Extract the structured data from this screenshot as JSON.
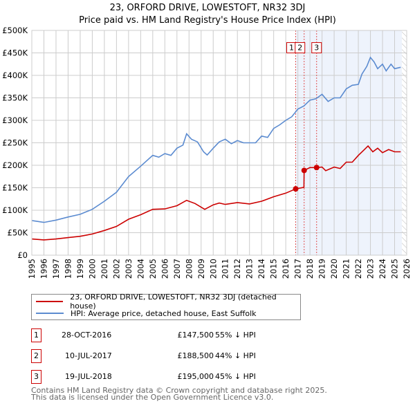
{
  "chart_data": {
    "type": "line",
    "title": "23, ORFORD DRIVE, LOWESTOFT, NR32 3DJ",
    "subtitle": "Price paid vs. HM Land Registry's House Price Index (HPI)",
    "xlim": [
      1995,
      2026
    ],
    "ylim": [
      0,
      500000
    ],
    "y_ticks": [
      0,
      50000,
      100000,
      150000,
      200000,
      250000,
      300000,
      350000,
      400000,
      450000,
      500000
    ],
    "y_tick_labels": [
      "£0",
      "£50K",
      "£100K",
      "£150K",
      "£200K",
      "£250K",
      "£300K",
      "£350K",
      "£400K",
      "£450K",
      "£500K"
    ],
    "x_ticks": [
      1995,
      1996,
      1997,
      1998,
      1999,
      2000,
      2001,
      2002,
      2003,
      2004,
      2005,
      2006,
      2007,
      2008,
      2009,
      2010,
      2011,
      2012,
      2013,
      2014,
      2015,
      2016,
      2017,
      2018,
      2019,
      2020,
      2021,
      2022,
      2023,
      2024,
      2025,
      2026
    ],
    "grid": true,
    "shaded_region": [
      2016.82,
      2025.6
    ],
    "forecast_hatch_from": 2025.6,
    "series": [
      {
        "name": "23, ORFORD DRIVE, LOWESTOFT, NR32 3DJ (detached house)",
        "color": "#cc0000",
        "x": [
          1995,
          1996,
          1997,
          1998,
          1999,
          2000,
          2001,
          2002,
          2003,
          2004,
          2005,
          2006,
          2007,
          2007.8,
          2008.5,
          2009.3,
          2010,
          2010.5,
          2011,
          2012,
          2013,
          2014,
          2015,
          2016,
          2016.82,
          2017.5,
          2017.52,
          2018,
          2018.55,
          2019,
          2019.3,
          2020,
          2020.5,
          2021,
          2021.5,
          2022,
          2022.5,
          2022.8,
          2023.2,
          2023.6,
          2024,
          2024.5,
          2025,
          2025.5
        ],
        "y": [
          36000,
          34000,
          36000,
          39000,
          42000,
          47000,
          55000,
          64000,
          80000,
          90000,
          102000,
          103000,
          110000,
          122000,
          115000,
          102000,
          112000,
          116000,
          113000,
          117000,
          114000,
          120000,
          130000,
          138000,
          147500,
          151000,
          188500,
          195000,
          195000,
          196000,
          188000,
          196000,
          193000,
          207000,
          207000,
          222000,
          235000,
          243000,
          230000,
          238000,
          228000,
          235000,
          230000,
          230000
        ]
      },
      {
        "name": "HPI: Average price, detached house, East Suffolk",
        "color": "#5b8bd0",
        "x": [
          1995,
          1996,
          1997,
          1998,
          1999,
          2000,
          2001,
          2002,
          2003,
          2004,
          2005,
          2005.5,
          2006,
          2006.5,
          2007,
          2007.5,
          2007.8,
          2008.2,
          2008.7,
          2009.2,
          2009.5,
          2010,
          2010.5,
          2011,
          2011.5,
          2012,
          2012.5,
          2013,
          2013.5,
          2014,
          2014.5,
          2015,
          2015.5,
          2016,
          2016.5,
          2017,
          2017.5,
          2018,
          2018.5,
          2019,
          2019.5,
          2020,
          2020.5,
          2021,
          2021.5,
          2022,
          2022.3,
          2022.7,
          2023,
          2023.3,
          2023.6,
          2024,
          2024.3,
          2024.7,
          2025,
          2025.5
        ],
        "y": [
          77000,
          73000,
          78000,
          85000,
          91000,
          102000,
          120000,
          140000,
          175000,
          198000,
          222000,
          218000,
          226000,
          222000,
          238000,
          245000,
          270000,
          258000,
          252000,
          230000,
          223000,
          238000,
          252000,
          258000,
          248000,
          255000,
          250000,
          250000,
          250000,
          265000,
          262000,
          282000,
          290000,
          300000,
          308000,
          325000,
          332000,
          345000,
          348000,
          358000,
          342000,
          350000,
          350000,
          370000,
          378000,
          380000,
          403000,
          420000,
          440000,
          430000,
          415000,
          425000,
          410000,
          425000,
          415000,
          418000
        ]
      }
    ],
    "sales": [
      {
        "num": "1",
        "x": 2016.82,
        "y": 147500
      },
      {
        "num": "2",
        "x": 2017.52,
        "y": 188500
      },
      {
        "num": "3",
        "x": 2018.55,
        "y": 195000
      }
    ]
  },
  "legend": {
    "property": "23, ORFORD DRIVE, LOWESTOFT, NR32 3DJ (detached house)",
    "hpi": "HPI: Average price, detached house, East Suffolk"
  },
  "sales_table": [
    {
      "num": "1",
      "date": "28-OCT-2016",
      "price": "£147,500",
      "hpi": "55% ↓ HPI"
    },
    {
      "num": "2",
      "date": "10-JUL-2017",
      "price": "£188,500",
      "hpi": "44% ↓ HPI"
    },
    {
      "num": "3",
      "date": "19-JUL-2018",
      "price": "£195,000",
      "hpi": "45% ↓ HPI"
    }
  ],
  "footer": {
    "line1": "Contains HM Land Registry data © Crown copyright and database right 2025.",
    "line2": "This data is licensed under the Open Government Licence v3.0."
  }
}
